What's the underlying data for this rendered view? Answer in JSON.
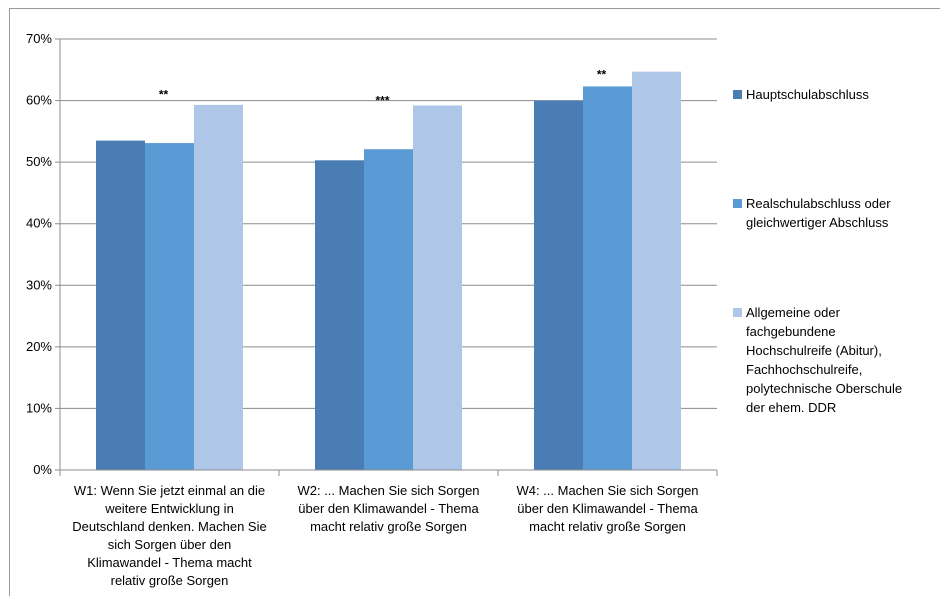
{
  "chart_data": {
    "type": "bar",
    "y_ticks": [
      "0%",
      "10%",
      "20%",
      "30%",
      "40%",
      "50%",
      "60%",
      "70%"
    ],
    "ylim": [
      0,
      70
    ],
    "grid": true,
    "legend_position": "right",
    "categories": [
      [
        "W1: Wenn Sie jetzt einmal an die",
        "weitere Entwicklung in",
        "Deutschland denken. Machen Sie",
        "sich Sorgen über den",
        "Klimawandel - Thema macht",
        "relativ große Sorgen"
      ],
      [
        "W2: ... Machen Sie sich Sorgen",
        "über den Klimawandel - Thema",
        "macht relativ große Sorgen"
      ],
      [
        "W4: ... Machen Sie sich Sorgen",
        "über den Klimawandel - Thema",
        "macht relativ große Sorgen"
      ]
    ],
    "significance": [
      "**",
      "***",
      "**"
    ],
    "series": [
      {
        "name": [
          "Hauptschulabschluss"
        ],
        "color": "#4a7db4",
        "values": [
          53.5,
          50.3,
          60.0
        ]
      },
      {
        "name": [
          "Realschulabschluss oder",
          "gleichwertiger Abschluss"
        ],
        "color": "#5b9bd5",
        "values": [
          53.1,
          52.1,
          62.3
        ]
      },
      {
        "name": [
          "Allgemeine oder",
          "fachgebundene",
          "Hochschulreife (Abitur),",
          "Fachhochschulreife,",
          "polytechnische Oberschule",
          "der ehem. DDR"
        ],
        "color": "#aec7e8",
        "values": [
          59.3,
          59.2,
          64.7
        ]
      }
    ]
  }
}
